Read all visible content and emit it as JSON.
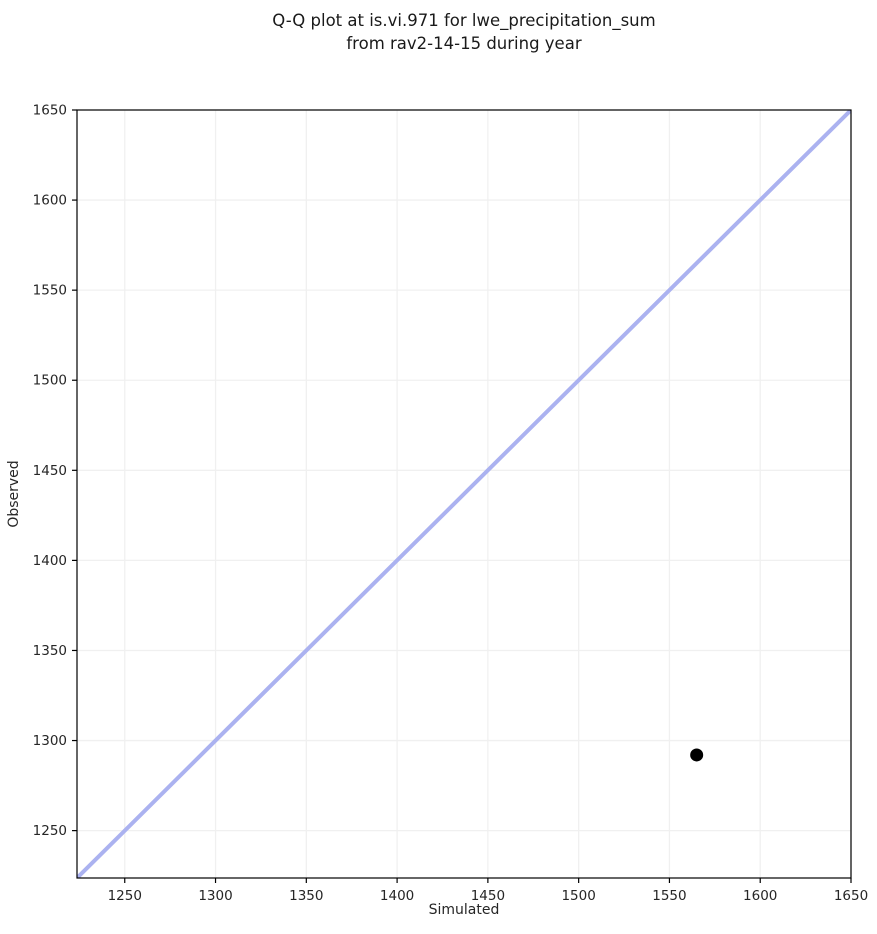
{
  "title": {
    "line1": "Q-Q plot at is.vi.971 for lwe_precipitation_sum",
    "line2": "from rav2-14-15 during year"
  },
  "chart_data": {
    "type": "scatter",
    "title": "Q-Q plot at is.vi.971 for lwe_precipitation_sum\nfrom rav2-14-15 during year",
    "xlabel": "Simulated",
    "ylabel": "Observed",
    "xlim": [
      1223.7,
      1650
    ],
    "ylim": [
      1223.7,
      1650
    ],
    "xticks": [
      1250,
      1300,
      1350,
      1400,
      1450,
      1500,
      1550,
      1600,
      1650
    ],
    "yticks": [
      1250,
      1300,
      1350,
      1400,
      1450,
      1500,
      1550,
      1600,
      1650
    ],
    "grid": true,
    "legend": false,
    "series": [
      {
        "name": "identity-line",
        "type": "line",
        "x": [
          1223.7,
          1650
        ],
        "y": [
          1223.7,
          1650
        ],
        "color": "#abb2f0",
        "linewidth": 4
      },
      {
        "name": "quantile-points",
        "type": "scatter",
        "points": [
          [
            1565,
            1292
          ]
        ],
        "color": "#000000",
        "marker_diameter": 13
      }
    ],
    "colors": {
      "background": "#ffffff",
      "grid": "#f0f0f0",
      "spine": "#000000",
      "tick": "#000000"
    }
  }
}
